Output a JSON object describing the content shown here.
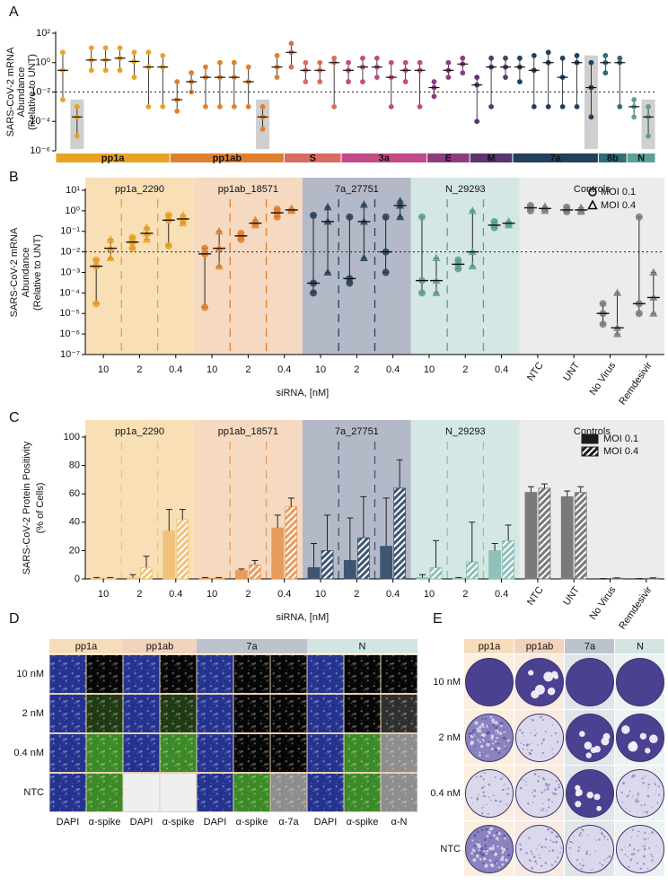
{
  "panel_labels": [
    "A",
    "B",
    "C",
    "D",
    "E"
  ],
  "chart_data": [
    {
      "type": "dotplot",
      "ylabel": [
        "SARS-CoV-2 mRNA",
        "Abundance",
        "(Relative to UNT)"
      ],
      "yscale": "log",
      "ylim": [
        1e-06,
        100
      ],
      "yticks": [
        {
          "value": 1e-06,
          "label": "10⁻⁶"
        },
        {
          "value": 0.0001,
          "label": "10⁻⁴"
        },
        {
          "value": 0.01,
          "label": "10⁻²"
        },
        {
          "value": 1,
          "label": "10⁰"
        },
        {
          "value": 100,
          "label": "10²"
        }
      ],
      "reference_line": 0.01,
      "series": [
        {
          "name": "pp1a",
          "color": "#e9a126",
          "values": [
            0.3,
            0.0002,
            1.5,
            1.5,
            2,
            1.2,
            0.5,
            0.5
          ],
          "low": [
            0.003,
            1e-05,
            0.3,
            0.3,
            0.3,
            0.1,
            0.001,
            0.001
          ],
          "high": [
            5,
            0.001,
            10,
            10,
            10,
            5,
            5,
            3
          ],
          "highlighted": [
            false,
            true,
            false,
            false,
            false,
            false,
            false,
            false
          ]
        },
        {
          "name": "pp1ab",
          "color": "#e0802e",
          "values": [
            0.003,
            0.05,
            0.1,
            0.1,
            0.1,
            0.05,
            0.0002,
            0.5
          ],
          "low": [
            0.0005,
            0.01,
            0.001,
            0.001,
            0.001,
            0.001,
            3e-05,
            0.1
          ],
          "high": [
            0.05,
            0.2,
            0.5,
            1,
            1,
            0.5,
            0.001,
            3
          ],
          "highlighted": [
            false,
            false,
            false,
            false,
            false,
            false,
            true,
            false
          ]
        },
        {
          "name": "S",
          "color": "#d96b61",
          "values": [
            5,
            0.3,
            0.3,
            1
          ],
          "low": [
            0.5,
            0.05,
            0.05,
            0.001
          ],
          "high": [
            20,
            1,
            1,
            2
          ],
          "highlighted": [
            false,
            false,
            false,
            false
          ]
        },
        {
          "name": "3a",
          "color": "#c24a86",
          "values": [
            0.3,
            0.5,
            0.5,
            0.1,
            0.3,
            0.3
          ],
          "low": [
            0.05,
            0.05,
            0.1,
            0.001,
            0.05,
            0.001
          ],
          "high": [
            1,
            2,
            2,
            1,
            1,
            1
          ],
          "highlighted": [
            false,
            false,
            false,
            false,
            false,
            false
          ]
        },
        {
          "name": "E",
          "color": "#8d3d7d",
          "values": [
            0.02,
            0.3,
            0.8
          ],
          "low": [
            0.005,
            0.1,
            0.2
          ],
          "high": [
            0.05,
            1,
            2
          ],
          "highlighted": [
            false,
            false,
            false
          ]
        },
        {
          "name": "M",
          "color": "#5a3570",
          "values": [
            0.03,
            0.5,
            0.5
          ],
          "low": [
            0.0001,
            0.001,
            0.1
          ],
          "high": [
            0.1,
            2,
            2
          ],
          "highlighted": [
            false,
            false,
            false
          ]
        },
        {
          "name": "7a",
          "color": "#22405e",
          "values": [
            0.5,
            0.3,
            1,
            0.1,
            1,
            0.02
          ],
          "low": [
            0.05,
            0.001,
            0.001,
            0.001,
            0.001,
            0.0002
          ],
          "high": [
            2,
            3,
            5,
            2,
            3,
            1
          ],
          "highlighted": [
            false,
            false,
            false,
            false,
            false,
            true
          ]
        },
        {
          "name": "8b",
          "color": "#2f6d75",
          "values": [
            1,
            1
          ],
          "low": [
            0.2,
            0.001
          ],
          "high": [
            3,
            2
          ],
          "highlighted": [
            false,
            false
          ]
        },
        {
          "name": "N",
          "color": "#5f9f99",
          "values": [
            0.001,
            0.0002
          ],
          "low": [
            0.0002,
            1e-05
          ],
          "high": [
            0.003,
            0.001
          ],
          "highlighted": [
            false,
            true
          ]
        }
      ]
    },
    {
      "type": "dotplot",
      "ylabel": [
        "SARS-CoV-2 mRNA",
        "Abundance",
        "(Relative to UNT)"
      ],
      "xlabel": "siRNA, [nM]",
      "yscale": "log",
      "ylim": [
        1e-07,
        10
      ],
      "yticks": [
        {
          "value": 10,
          "label": "10¹"
        },
        {
          "value": 1,
          "label": "10⁰"
        },
        {
          "value": 0.1,
          "label": "10⁻¹"
        },
        {
          "value": 0.01,
          "label": "10⁻²"
        },
        {
          "value": 0.001,
          "label": "10⁻³"
        },
        {
          "value": 0.0001,
          "label": "10⁻⁴"
        },
        {
          "value": 1e-05,
          "label": "10⁻⁵"
        },
        {
          "value": 1e-06,
          "label": "10⁻⁶"
        },
        {
          "value": 1e-07,
          "label": "10⁻⁷"
        }
      ],
      "reference_line": 0.01,
      "legend": "top-right",
      "groups": [
        {
          "name": "pp1a_2290",
          "color": "#e9a126",
          "background": "#f9dfb6",
          "categories": [
            "10",
            "2",
            "0.4"
          ]
        },
        {
          "name": "pp1ab_18571",
          "color": "#e0802e",
          "background": "#f5d9c0",
          "categories": [
            "10",
            "2",
            "0.4"
          ]
        },
        {
          "name": "7a_27751",
          "color": "#27415f",
          "background": "#b4b9c7",
          "categories": [
            "10",
            "2",
            "0.4"
          ]
        },
        {
          "name": "N_29293",
          "color": "#5e9e97",
          "background": "#d4e7e4",
          "categories": [
            "10",
            "2",
            "0.4"
          ]
        },
        {
          "name": "Controls",
          "color": "#7d7d7d",
          "background": "#ececec",
          "categories": [
            "NTC",
            "UNT",
            "No Virus",
            "Remdesivir"
          ]
        }
      ],
      "series": [
        {
          "name": "MOI 0.1",
          "marker": "circle",
          "values": [
            0.002,
            0.03,
            0.35,
            0.008,
            0.06,
            0.8,
            0.0003,
            0.0005,
            0.01,
            0.0004,
            0.0025,
            0.2,
            1.4,
            1.1,
            1e-05,
            3e-05
          ],
          "low": [
            3e-05,
            0.015,
            0.02,
            2e-05,
            0.04,
            0.5,
            0.0001,
            0.0003,
            0.001,
            0.0001,
            0.0015,
            0.15,
            1.0,
            0.9,
            3e-06,
            1e-05
          ],
          "high": [
            0.004,
            0.05,
            0.6,
            0.015,
            0.08,
            1.2,
            0.6,
            0.5,
            0.5,
            0.5,
            0.004,
            0.3,
            1.8,
            1.5,
            3e-05,
            0.5
          ]
        },
        {
          "name": "MOI 0.4",
          "marker": "triangle",
          "values": [
            0.015,
            0.08,
            0.4,
            0.015,
            0.25,
            1.1,
            0.3,
            0.3,
            1.8,
            0.0004,
            0.01,
            0.25,
            1.3,
            1.1,
            2e-06,
            6e-05
          ],
          "low": [
            0.005,
            0.04,
            0.25,
            0.002,
            0.2,
            1.0,
            0.001,
            0.005,
            0.5,
            0.0001,
            0.002,
            0.2,
            1.0,
            0.9,
            1e-06,
            1e-05
          ],
          "high": [
            0.04,
            0.15,
            0.6,
            0.1,
            0.35,
            1.3,
            1.5,
            2,
            3,
            0.005,
            1,
            0.3,
            1.6,
            1.4,
            0.0001,
            0.001
          ]
        }
      ]
    },
    {
      "type": "bar",
      "ylabel": [
        "SARS-CoV-2 Protein Positivity",
        "(% of Cells)"
      ],
      "xlabel": "siRNA, [nM]",
      "ylim": [
        0,
        100
      ],
      "yticks": [
        0,
        20,
        40,
        60,
        80,
        100
      ],
      "legend": "top-right",
      "legend_color": "#1c1c1c",
      "groups": [
        {
          "name": "pp1a_2290",
          "color": "#f1c27c",
          "background": "#f9dfb6",
          "categories": [
            "10",
            "2",
            "0.4"
          ]
        },
        {
          "name": "pp1ab_18571",
          "color": "#e79c5e",
          "background": "#f5d9c0",
          "categories": [
            "10",
            "2",
            "0.4"
          ]
        },
        {
          "name": "7a_27751",
          "color": "#3e5672",
          "background": "#b4b9c7",
          "categories": [
            "10",
            "2",
            "0.4"
          ]
        },
        {
          "name": "N_29293",
          "color": "#8fc0b9",
          "background": "#d4e7e4",
          "categories": [
            "10",
            "2",
            "0.4"
          ]
        },
        {
          "name": "Controls",
          "color": "#7a7a7a",
          "background": "#ececec",
          "categories": [
            "NTC",
            "UNT",
            "No Virus",
            "Remdesivir"
          ]
        }
      ],
      "series": [
        {
          "name": "MOI 0.1",
          "pattern": "solid",
          "values": [
            0.5,
            1,
            34,
            0.5,
            6,
            36,
            8,
            13,
            23,
            1,
            0.5,
            20,
            61,
            58,
            0,
            0
          ],
          "errors": [
            0.5,
            2,
            15,
            0.5,
            1,
            9,
            17,
            30,
            34,
            2,
            0.5,
            5,
            4,
            4,
            0.3,
            0.3
          ]
        },
        {
          "name": "MOI 0.4",
          "pattern": "hatch",
          "values": [
            0.5,
            8,
            42,
            0.5,
            10,
            51,
            20,
            29,
            64,
            8,
            12,
            27,
            64,
            61,
            0.5,
            0.5
          ],
          "errors": [
            0.5,
            8,
            7,
            0.5,
            3,
            6,
            25,
            29,
            20,
            19,
            28,
            11,
            3,
            4,
            0.3,
            0.3
          ]
        }
      ]
    }
  ],
  "panel_d": {
    "columns": [
      {
        "name": "pp1a",
        "color": "#f6dcb8",
        "stains": [
          "DAPI",
          "α-spike"
        ]
      },
      {
        "name": "pp1ab",
        "color": "#f2d3bd",
        "stains": [
          "DAPI",
          "α-spike"
        ]
      },
      {
        "name": "7a",
        "color": "#bcc3cd",
        "stains": [
          "DAPI",
          "α-spike",
          "α-7a"
        ]
      },
      {
        "name": "N",
        "color": "#d2e5e2",
        "stains": [
          "DAPI",
          "α-spike",
          "α-N"
        ]
      }
    ],
    "rows": [
      "10 nM",
      "2 nM",
      "0.4 nM",
      "NTC"
    ]
  },
  "panel_e": {
    "columns": [
      {
        "name": "pp1a",
        "color": "#f6dcb8"
      },
      {
        "name": "pp1ab",
        "color": "#f2d3bd"
      },
      {
        "name": "7a",
        "color": "#bcc3cd"
      },
      {
        "name": "N",
        "color": "#d2e5e2"
      }
    ],
    "rows": [
      "10 nM",
      "2 nM",
      "0.4 nM",
      "NTC"
    ]
  }
}
